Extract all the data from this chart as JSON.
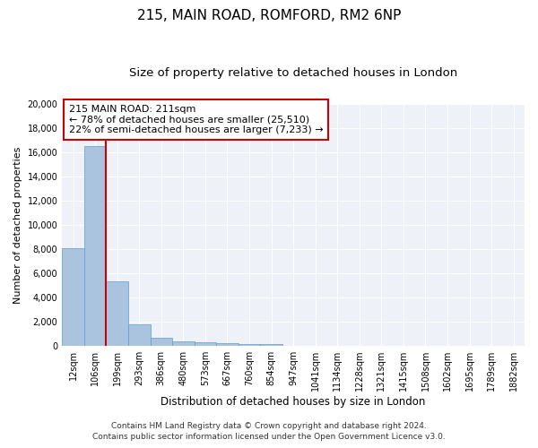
{
  "title_line1": "215, MAIN ROAD, ROMFORD, RM2 6NP",
  "title_line2": "Size of property relative to detached houses in London",
  "xlabel": "Distribution of detached houses by size in London",
  "ylabel": "Number of detached properties",
  "categories": [
    "12sqm",
    "106sqm",
    "199sqm",
    "293sqm",
    "386sqm",
    "480sqm",
    "573sqm",
    "667sqm",
    "760sqm",
    "854sqm",
    "947sqm",
    "1041sqm",
    "1134sqm",
    "1228sqm",
    "1321sqm",
    "1415sqm",
    "1508sqm",
    "1602sqm",
    "1695sqm",
    "1789sqm",
    "1882sqm"
  ],
  "values": [
    8100,
    16500,
    5300,
    1750,
    700,
    350,
    275,
    200,
    175,
    150,
    0,
    0,
    0,
    0,
    0,
    0,
    0,
    0,
    0,
    0,
    0
  ],
  "bar_color": "#aac4e0",
  "bar_edge_color": "#5a9ecf",
  "ylim": [
    0,
    20000
  ],
  "yticks": [
    0,
    2000,
    4000,
    6000,
    8000,
    10000,
    12000,
    14000,
    16000,
    18000,
    20000
  ],
  "property_line_x": 2,
  "property_label": "215 MAIN ROAD: 211sqm",
  "annotation_line1": "← 78% of detached houses are smaller (25,510)",
  "annotation_line2": "22% of semi-detached houses are larger (7,233) →",
  "annotation_box_color": "#cc0000",
  "footnote_line1": "Contains HM Land Registry data © Crown copyright and database right 2024.",
  "footnote_line2": "Contains public sector information licensed under the Open Government Licence v3.0.",
  "bg_color": "#eef2f8",
  "grid_color": "#ffffff",
  "title_fontsize": 11,
  "subtitle_fontsize": 9.5,
  "axis_label_fontsize": 8.5,
  "ylabel_fontsize": 8,
  "tick_fontsize": 7,
  "annot_fontsize": 8,
  "footnote_fontsize": 6.5
}
